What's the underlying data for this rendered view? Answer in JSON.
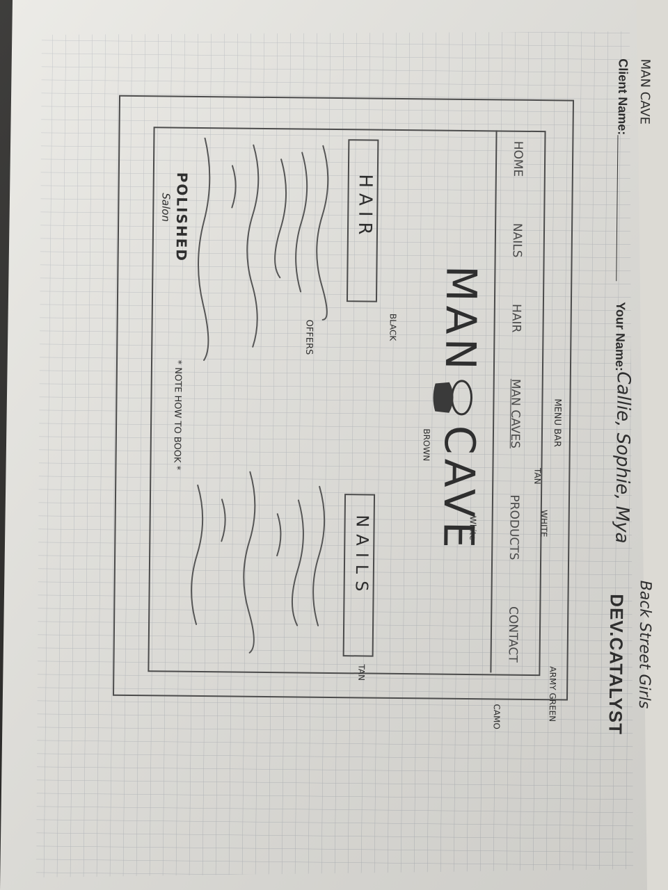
{
  "sheet_header": {
    "client_name_label": "Client Name:",
    "your_name_label": "Your Name:",
    "your_name_value": "Callie, Sophie, Mya",
    "project_title": "MAN CAVE",
    "brand": "DEV.CATALYST",
    "team_note": "Back Street Girls"
  },
  "wireframe": {
    "nav": {
      "items": [
        "HOME",
        "NAILS",
        "HAIR",
        "MAN CAVES",
        "PRODUCTS",
        "CONTACT"
      ],
      "annotation": "MENU BAR"
    },
    "hero": {
      "title_left": "MAN",
      "title_right": "CAVE"
    },
    "left_card": {
      "label": "HAIR",
      "note": "BLACK"
    },
    "right_card": {
      "label": "NAILS"
    },
    "offers_label": "OFFERS",
    "footer": {
      "title": "POLISHED",
      "subtitle": "Salon",
      "note": "* NOTE HOW TO BOOK *"
    },
    "color_notes": {
      "tan_top": "TAN",
      "white_top": "WHITE",
      "white_hero": "White",
      "brown": "BROWN",
      "army_green": "ARMY GREEN",
      "camo": "CAMO",
      "tan_side": "TAN"
    }
  },
  "colors": {
    "paper": "#e9e8e3",
    "grid": "#bcbfc3",
    "pencil": "#4b4b4b",
    "printed_text": "#1b1b1b",
    "background": "#1d1c1a"
  }
}
